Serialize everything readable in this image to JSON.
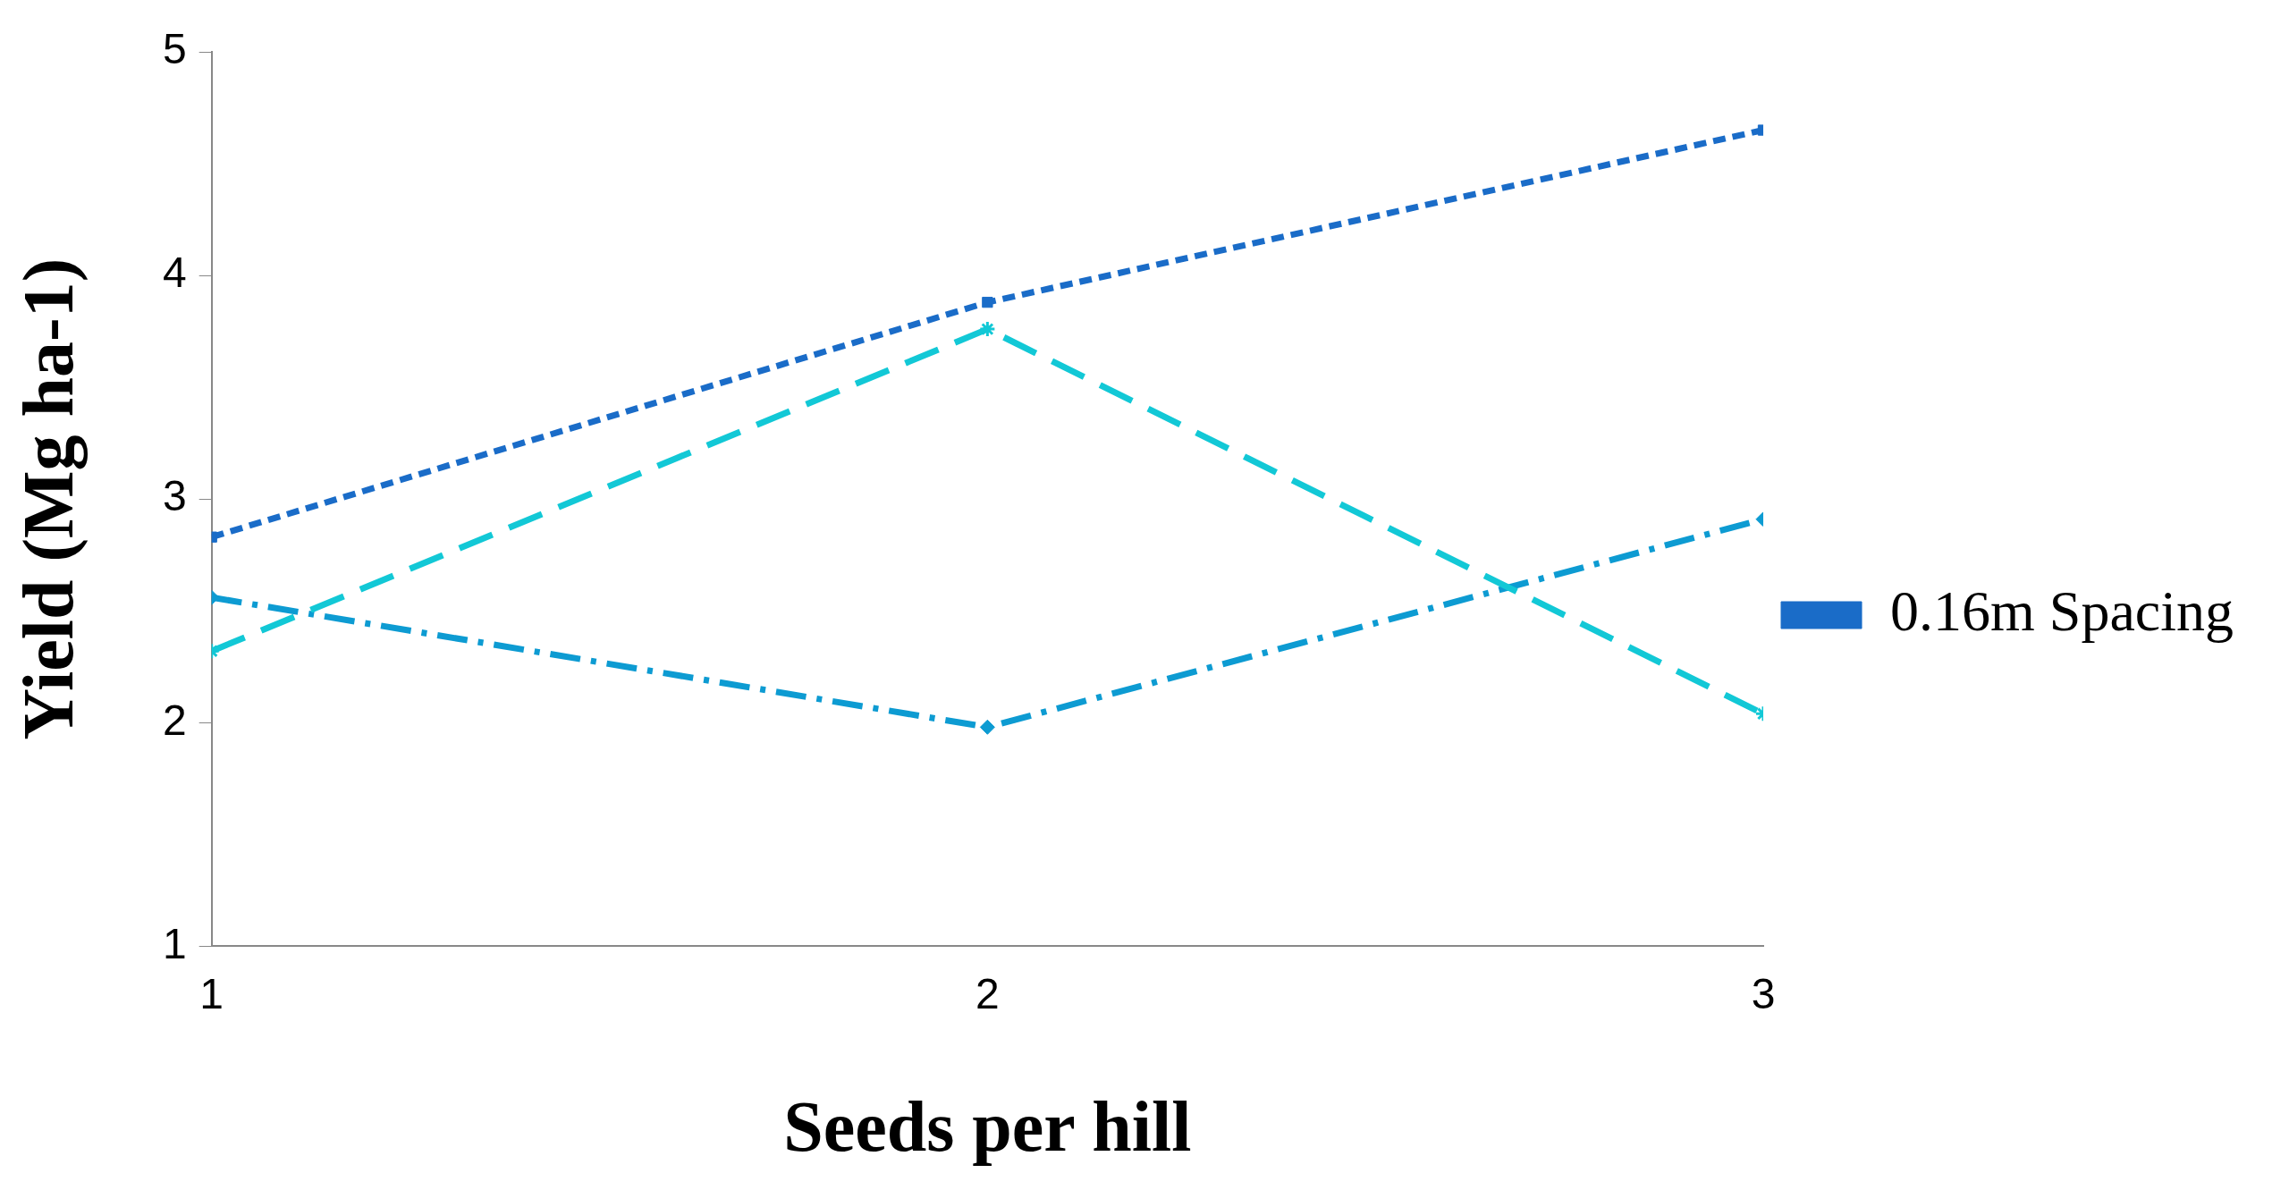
{
  "chart_data": {
    "type": "line",
    "xlabel": "Seeds per hill",
    "ylabel": "Yield (Mg ha-1)",
    "x": [
      1,
      2,
      3
    ],
    "xlim": [
      1,
      3
    ],
    "xticks": [
      1,
      2,
      3
    ],
    "ylim": [
      1,
      5
    ],
    "yticks": [
      1,
      2,
      3,
      4,
      5
    ],
    "grid": false,
    "legend": "right",
    "series": [
      {
        "name": "0.16m Spacing",
        "color": "#1a6cc8",
        "values": [
          2.83,
          3.88,
          4.65
        ],
        "marker": "square",
        "line_style": "dotted"
      },
      {
        "color": "#12c8d6",
        "values": [
          2.32,
          3.76,
          2.04
        ],
        "marker": "cross",
        "line_style": "dashed"
      },
      {
        "color": "#0d9bd2",
        "values": [
          2.56,
          1.98,
          2.91
        ],
        "marker": "diamond",
        "line_style": "dashdot"
      }
    ]
  }
}
